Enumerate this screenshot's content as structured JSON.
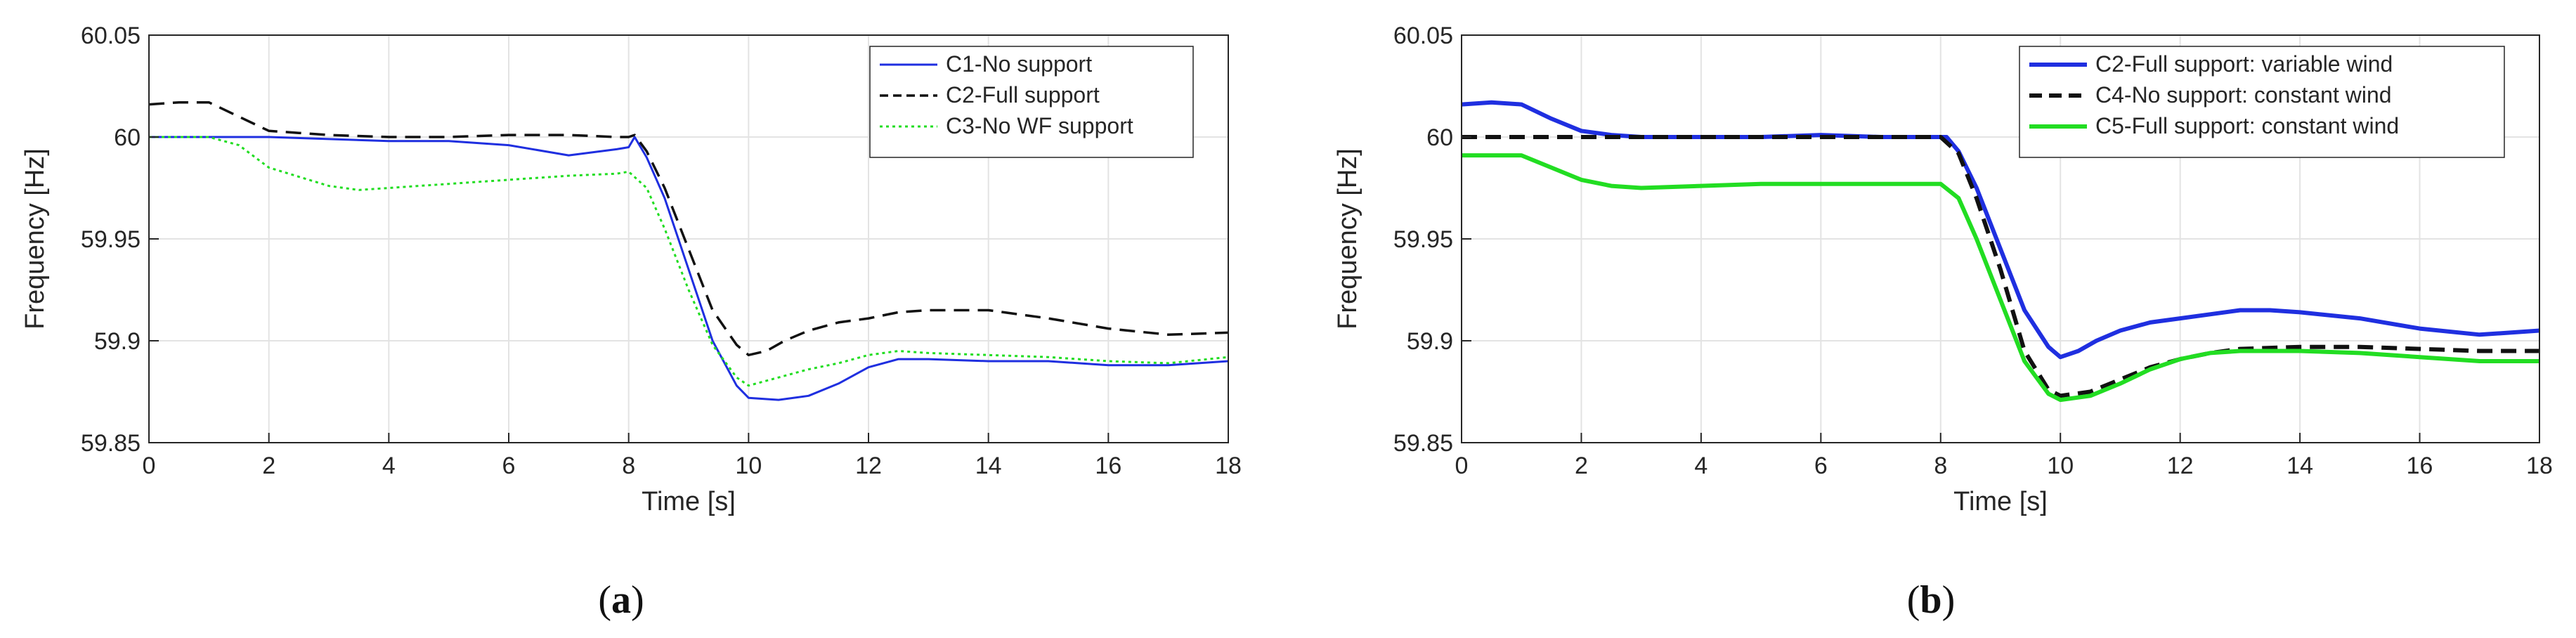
{
  "chart_data": [
    {
      "type": "line",
      "panel_label": "a",
      "xlabel": "Time [s]",
      "ylabel": "Frequency [Hz]",
      "xlim": [
        0,
        18
      ],
      "ylim": [
        59.85,
        60.05
      ],
      "xticks": [
        0,
        2,
        4,
        6,
        8,
        10,
        12,
        14,
        16,
        18
      ],
      "yticks": [
        59.85,
        59.9,
        59.95,
        60,
        60.05
      ],
      "ytick_labels": [
        "59.85",
        "59.9",
        "59.95",
        "60",
        "60.05"
      ],
      "grid": true,
      "legend_position": "top-right",
      "series": [
        {
          "name": "C1-No support",
          "color": "#1f2fe0",
          "style": "solid",
          "x": [
            0,
            1,
            2,
            3,
            4,
            5,
            6,
            7,
            7.8,
            8.0,
            8.1,
            8.3,
            8.6,
            9.0,
            9.4,
            9.8,
            10.0,
            10.5,
            11,
            11.5,
            12,
            12.5,
            13,
            14,
            15,
            16,
            17,
            18
          ],
          "y": [
            60.0,
            60.0,
            60.0,
            59.999,
            59.998,
            59.998,
            59.996,
            59.991,
            59.994,
            59.995,
            60.0,
            59.99,
            59.97,
            59.935,
            59.9,
            59.878,
            59.872,
            59.871,
            59.873,
            59.879,
            59.887,
            59.891,
            59.891,
            59.89,
            59.89,
            59.888,
            59.888,
            59.89
          ]
        },
        {
          "name": "C2-Full support",
          "color": "#111111",
          "style": "dashed",
          "x": [
            0,
            0.5,
            1.0,
            1.5,
            2.0,
            2.5,
            3,
            4,
            5,
            6,
            7,
            7.8,
            8.0,
            8.1,
            8.3,
            8.6,
            9.0,
            9.4,
            9.8,
            10.0,
            10.3,
            10.6,
            11,
            11.5,
            12,
            12.5,
            13,
            14,
            15,
            16,
            17,
            18
          ],
          "y": [
            60.016,
            60.017,
            60.017,
            60.01,
            60.003,
            60.002,
            60.001,
            60.0,
            60.0,
            60.001,
            60.001,
            60.0,
            60.0,
            60.001,
            59.993,
            59.975,
            59.945,
            59.915,
            59.898,
            59.893,
            59.895,
            59.9,
            59.905,
            59.909,
            59.911,
            59.914,
            59.915,
            59.915,
            59.911,
            59.906,
            59.903,
            59.904
          ]
        },
        {
          "name": "C3-No WF support",
          "color": "#22dd22",
          "style": "dotted",
          "x": [
            0,
            1,
            1.5,
            2,
            3,
            3.5,
            4,
            5,
            6,
            7,
            7.8,
            8.0,
            8.3,
            8.6,
            9.0,
            9.4,
            9.8,
            10.0,
            10.5,
            11,
            11.5,
            12,
            12.5,
            13,
            14,
            15,
            16,
            17,
            18
          ],
          "y": [
            60.0,
            60.0,
            59.996,
            59.985,
            59.976,
            59.974,
            59.975,
            59.977,
            59.979,
            59.981,
            59.982,
            59.983,
            59.975,
            59.955,
            59.925,
            59.898,
            59.882,
            59.878,
            59.882,
            59.886,
            59.889,
            59.893,
            59.895,
            59.894,
            59.893,
            59.892,
            59.89,
            59.889,
            59.892
          ]
        }
      ]
    },
    {
      "type": "line",
      "panel_label": "b",
      "xlabel": "Time [s]",
      "ylabel": "Frequency [Hz]",
      "xlim": [
        0,
        18
      ],
      "ylim": [
        59.85,
        60.05
      ],
      "xticks": [
        0,
        2,
        4,
        6,
        8,
        10,
        12,
        14,
        16,
        18
      ],
      "yticks": [
        59.85,
        59.9,
        59.95,
        60,
        60.05
      ],
      "ytick_labels": [
        "59.85",
        "59.9",
        "59.95",
        "60",
        "60.05"
      ],
      "grid": true,
      "legend_position": "top-right",
      "series": [
        {
          "name": "C2-Full support: variable wind",
          "color": "#1f2fe0",
          "style": "solid",
          "x": [
            0,
            0.5,
            1.0,
            1.5,
            2.0,
            2.5,
            3,
            4,
            5,
            6,
            7,
            8.0,
            8.1,
            8.3,
            8.6,
            9.0,
            9.4,
            9.8,
            10.0,
            10.3,
            10.6,
            11,
            11.5,
            12,
            12.5,
            13,
            13.5,
            14,
            15,
            16,
            17,
            18
          ],
          "y": [
            60.016,
            60.017,
            60.016,
            60.009,
            60.003,
            60.001,
            60.0,
            60.0,
            60.0,
            60.001,
            60.0,
            60.0,
            60.0,
            59.993,
            59.975,
            59.945,
            59.915,
            59.897,
            59.892,
            59.895,
            59.9,
            59.905,
            59.909,
            59.911,
            59.913,
            59.915,
            59.915,
            59.914,
            59.911,
            59.906,
            59.903,
            59.905
          ]
        },
        {
          "name": "C4-No support: constant wind",
          "color": "#111111",
          "style": "dashed",
          "x": [
            0,
            1,
            2,
            3,
            4,
            5,
            6,
            7,
            8.0,
            8.3,
            8.6,
            9.0,
            9.4,
            9.8,
            10.0,
            10.5,
            11,
            11.5,
            12,
            12.5,
            13,
            14,
            15,
            16,
            17,
            18
          ],
          "y": [
            60.0,
            60.0,
            60.0,
            60.0,
            60.0,
            60.0,
            60.0,
            60.0,
            60.0,
            59.992,
            59.97,
            59.935,
            59.895,
            59.876,
            59.873,
            59.875,
            59.881,
            59.887,
            59.891,
            59.894,
            59.896,
            59.897,
            59.897,
            59.896,
            59.895,
            59.895
          ]
        },
        {
          "name": "C5-Full support: constant wind",
          "color": "#22dd22",
          "style": "solid",
          "x": [
            0,
            1.0,
            1.5,
            2.0,
            2.5,
            3,
            4,
            5,
            6,
            7,
            8.0,
            8.3,
            8.6,
            9.0,
            9.4,
            9.8,
            10.0,
            10.5,
            11,
            11.5,
            12,
            12.5,
            13,
            14,
            15,
            16,
            17,
            18
          ],
          "y": [
            59.991,
            59.991,
            59.985,
            59.979,
            59.976,
            59.975,
            59.976,
            59.977,
            59.977,
            59.977,
            59.977,
            59.97,
            59.95,
            59.92,
            59.89,
            59.874,
            59.871,
            59.873,
            59.879,
            59.886,
            59.891,
            59.894,
            59.895,
            59.895,
            59.894,
            59.892,
            59.89,
            59.89
          ]
        }
      ]
    }
  ]
}
